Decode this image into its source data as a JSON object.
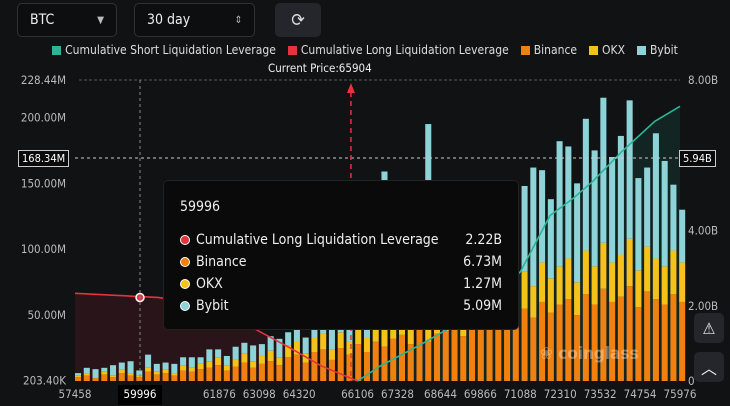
{
  "controls": {
    "coin": "BTC",
    "period": "30 day",
    "refresh_icon": "refresh-icon"
  },
  "colors": {
    "short": "#2bb596",
    "long": "#e2333e",
    "binance": "#f0800f",
    "okx": "#f5c21b",
    "bybit": "#8dd3d8"
  },
  "tooltip": {
    "title": "59996",
    "rows": [
      {
        "label": "Cumulative Long Liquidation Leverage",
        "value": "2.22B",
        "color": "#e2333e"
      },
      {
        "label": "Binance",
        "value": "6.73M",
        "color": "#f0800f"
      },
      {
        "label": "OKX",
        "value": "1.27M",
        "color": "#f5c21b"
      },
      {
        "label": "Bybit",
        "value": "5.09M",
        "color": "#8dd3d8"
      }
    ]
  },
  "crosshair": {
    "x_label": "59996",
    "left_label": "168.34M",
    "right_label": "5.94B"
  },
  "watermark": "coinglass",
  "chart_data": {
    "type": "bar",
    "current_price_label": "Current Price:65904",
    "current_price": 65904,
    "legend": [
      "Cumulative Short Liquidation Leverage",
      "Cumulative Long Liquidation Leverage",
      "Binance",
      "OKX",
      "Bybit"
    ],
    "legend_placement": "top",
    "x_ticks": [
      "57458",
      "59996",
      "61876",
      "63098",
      "64320",
      "66106",
      "67328",
      "68644",
      "69866",
      "71088",
      "72310",
      "73532",
      "74754",
      "75976"
    ],
    "x_tick_values": [
      57458,
      59996,
      61876,
      63098,
      64320,
      66106,
      67328,
      68644,
      69866,
      71088,
      72310,
      73532,
      74754,
      75976
    ],
    "xlim": [
      57458,
      75976
    ],
    "y_left_ticks": [
      "228.44M",
      "200.00M",
      "150.00M",
      "100.00M",
      "50.00M",
      "203.40K"
    ],
    "y_left_tick_values": [
      228.44,
      200,
      150,
      100,
      50,
      0.2034
    ],
    "ylim_left": [
      0,
      228.44
    ],
    "y_right_ticks": [
      "8.00B",
      "4.00B",
      "2.00B",
      "0"
    ],
    "y_right_tick_values": [
      8,
      4,
      2,
      0
    ],
    "ylim_right": [
      0,
      8
    ],
    "bins": {
      "start": 57458,
      "step": 268
    },
    "binance": [
      3,
      4,
      2,
      5,
      3,
      6,
      4,
      3,
      7,
      5,
      6,
      4,
      8,
      7,
      9,
      10,
      12,
      8,
      11,
      14,
      10,
      13,
      15,
      12,
      18,
      20,
      14,
      22,
      24,
      16,
      25,
      20,
      28,
      22,
      30,
      26,
      32,
      35,
      28,
      40,
      30,
      36,
      38,
      42,
      34,
      45,
      40,
      48,
      44,
      50,
      46,
      55,
      48,
      60,
      52,
      58,
      62,
      50,
      66,
      58,
      70,
      60,
      64,
      72,
      56,
      68,
      62,
      58,
      66,
      60
    ],
    "okx": [
      1,
      2,
      1,
      2,
      1,
      3,
      2,
      1,
      3,
      2,
      3,
      2,
      4,
      3,
      4,
      5,
      6,
      4,
      5,
      7,
      5,
      6,
      8,
      6,
      9,
      10,
      7,
      11,
      12,
      8,
      12,
      10,
      14,
      11,
      15,
      13,
      16,
      18,
      14,
      20,
      15,
      18,
      19,
      21,
      17,
      22,
      20,
      24,
      22,
      25,
      23,
      28,
      24,
      30,
      26,
      29,
      31,
      25,
      33,
      29,
      35,
      30,
      32,
      36,
      28,
      34,
      31,
      29,
      33,
      30
    ],
    "bybit": [
      2,
      4,
      6,
      3,
      8,
      5,
      9,
      4,
      10,
      6,
      5,
      7,
      6,
      8,
      5,
      9,
      6,
      7,
      10,
      8,
      12,
      9,
      11,
      14,
      10,
      15,
      12,
      18,
      14,
      16,
      20,
      18,
      22,
      60,
      24,
      120,
      26,
      70,
      30,
      40,
      150,
      35,
      40,
      50,
      42,
      60,
      48,
      55,
      70,
      50,
      80,
      65,
      90,
      70,
      60,
      95,
      85,
      75,
      100,
      88,
      110,
      80,
      90,
      105,
      70,
      60,
      95,
      80,
      50,
      40
    ],
    "cumulative_long": {
      "x": [
        57458,
        59996,
        61000,
        62500,
        64000,
        65000,
        66106
      ],
      "y": [
        2.33,
        2.22,
        2.1,
        1.6,
        0.9,
        0.4,
        0
      ]
    },
    "cumulative_short": {
      "x": [
        66106,
        66800,
        68000,
        69500,
        71088,
        72000,
        72700,
        73300,
        74200,
        75200,
        75976
      ],
      "y": [
        0,
        0.4,
        0.95,
        1.7,
        2.9,
        4.4,
        4.85,
        5.3,
        6.1,
        6.9,
        7.3
      ]
    }
  }
}
